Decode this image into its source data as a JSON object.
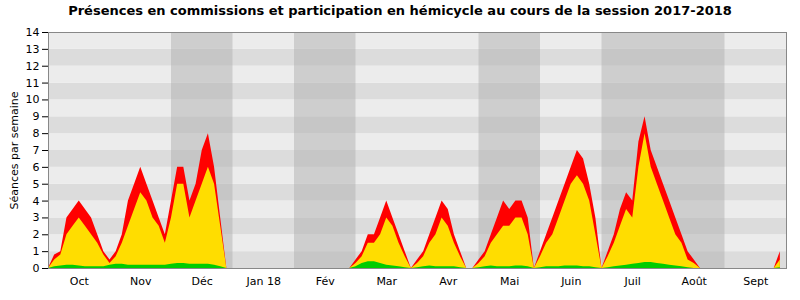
{
  "chart_data": {
    "type": "area",
    "title": "Présences en commissions et participation en hémicycle au cours de la session 2017-2018",
    "ylabel": "Séances par semaine",
    "x": [
      0,
      1,
      2,
      3,
      4,
      5,
      6,
      7,
      8,
      9,
      10,
      11,
      12,
      13,
      14,
      15,
      16,
      17,
      18,
      19,
      20,
      21,
      22,
      23,
      24,
      25,
      26,
      27,
      28,
      29,
      30,
      31,
      32,
      33,
      34,
      35,
      36,
      37,
      38,
      39,
      40,
      41,
      42,
      43,
      44,
      45,
      46,
      47,
      48,
      49,
      50,
      51,
      52,
      53,
      54,
      55,
      56,
      57,
      58,
      59,
      60,
      61,
      62,
      63,
      64,
      65,
      66,
      67,
      68,
      69,
      70,
      71,
      72,
      73,
      74,
      75,
      76,
      77,
      78,
      79,
      80,
      81,
      82,
      83,
      84,
      85,
      86,
      87,
      88,
      89,
      90,
      91,
      92,
      93,
      94,
      95,
      96,
      97,
      98,
      99,
      100,
      101,
      102,
      103,
      104,
      105,
      106,
      107,
      108,
      109,
      110,
      111,
      112,
      113,
      114,
      115,
      116,
      117,
      118,
      119
    ],
    "xlim": [
      0,
      120
    ],
    "xticks": [
      {
        "value": 5,
        "label": "Oct"
      },
      {
        "value": 15,
        "label": "Nov"
      },
      {
        "value": 25,
        "label": "Déc"
      },
      {
        "value": 35,
        "label": "Jan 18"
      },
      {
        "value": 45,
        "label": "Fév"
      },
      {
        "value": 55,
        "label": "Mar"
      },
      {
        "value": 65,
        "label": "Avr"
      },
      {
        "value": 75,
        "label": "Mai"
      },
      {
        "value": 85,
        "label": "Juin"
      },
      {
        "value": 95,
        "label": "Juil"
      },
      {
        "value": 105,
        "label": "Août"
      },
      {
        "value": 115,
        "label": "Sept"
      }
    ],
    "ylim": [
      0,
      14
    ],
    "yticks": [
      0,
      1,
      2,
      3,
      4,
      5,
      6,
      7,
      8,
      9,
      10,
      11,
      12,
      13,
      14
    ],
    "grid": true,
    "shaded_x_ranges": [
      [
        20,
        30
      ],
      [
        40,
        50
      ],
      [
        70,
        80
      ],
      [
        90,
        100
      ],
      [
        100,
        110
      ]
    ],
    "series": [
      {
        "color": "#ff0000",
        "values": [
          0,
          0.8,
          1,
          3,
          3.5,
          4,
          3.5,
          3,
          2,
          1,
          0.5,
          1,
          2,
          4,
          5,
          6,
          5,
          4,
          3,
          2,
          4,
          6,
          6,
          4,
          5,
          7,
          8,
          6,
          3,
          0,
          0,
          0,
          0,
          0,
          0,
          0,
          0,
          0,
          0,
          0,
          0,
          0,
          0,
          0,
          0,
          0,
          0,
          0,
          0,
          0,
          0.5,
          1,
          2,
          2,
          3,
          4,
          3,
          2,
          1,
          0,
          0.5,
          1,
          2,
          3,
          4,
          3.5,
          2,
          1,
          0,
          0,
          0.5,
          1,
          2,
          3,
          4,
          3.5,
          4,
          4,
          3,
          0,
          1,
          2,
          3,
          4,
          5,
          6,
          7,
          6.5,
          5,
          3,
          0,
          1,
          2,
          3.5,
          4.5,
          4,
          7.5,
          9,
          7,
          6,
          5,
          4,
          3,
          2,
          1,
          0.5,
          0,
          0,
          0,
          0,
          0,
          0,
          0,
          0,
          0,
          0,
          0,
          0,
          0,
          1
        ]
      },
      {
        "color": "#ffdd00",
        "values": [
          0,
          0.5,
          0.8,
          2,
          2.5,
          3,
          2.5,
          2,
          1.5,
          0.8,
          0.3,
          0.7,
          1.5,
          2.5,
          3.5,
          4.5,
          4,
          3,
          2.5,
          1.5,
          3,
          5,
          5,
          3,
          4,
          5,
          6,
          5,
          2.5,
          0,
          0,
          0,
          0,
          0,
          0,
          0,
          0,
          0,
          0,
          0,
          0,
          0,
          0,
          0,
          0,
          0,
          0,
          0,
          0,
          0,
          0.3,
          0.7,
          1.5,
          1.5,
          2,
          3,
          2.5,
          1.5,
          0.7,
          0,
          0.3,
          0.7,
          1.5,
          2,
          3,
          2.5,
          1.5,
          0.7,
          0,
          0,
          0.3,
          0.7,
          1.5,
          2,
          2.5,
          2.5,
          3,
          3,
          2,
          0,
          0.7,
          1.5,
          2,
          3,
          4,
          5,
          5.5,
          5,
          4,
          2,
          0,
          0.7,
          1.5,
          2.5,
          3.5,
          3,
          6,
          8,
          6,
          5,
          4,
          3,
          2,
          1.5,
          0.5,
          0.3,
          0,
          0,
          0,
          0,
          0,
          0,
          0,
          0,
          0,
          0,
          0,
          0,
          0,
          0.5
        ]
      },
      {
        "color": "#00cc00",
        "values": [
          0,
          0.1,
          0.15,
          0.2,
          0.2,
          0.15,
          0.1,
          0.1,
          0.1,
          0.1,
          0.2,
          0.25,
          0.25,
          0.2,
          0.2,
          0.2,
          0.2,
          0.2,
          0.2,
          0.2,
          0.25,
          0.3,
          0.3,
          0.25,
          0.25,
          0.25,
          0.25,
          0.2,
          0.1,
          0,
          0,
          0,
          0,
          0,
          0,
          0,
          0,
          0,
          0,
          0,
          0,
          0,
          0,
          0,
          0,
          0,
          0,
          0,
          0,
          0,
          0.1,
          0.3,
          0.4,
          0.4,
          0.3,
          0.2,
          0.15,
          0.1,
          0.05,
          0,
          0.05,
          0.1,
          0.15,
          0.1,
          0.1,
          0.1,
          0.1,
          0.05,
          0,
          0,
          0.05,
          0.1,
          0.15,
          0.1,
          0.1,
          0.1,
          0.15,
          0.15,
          0.1,
          0,
          0.05,
          0.1,
          0.1,
          0.1,
          0.15,
          0.15,
          0.15,
          0.1,
          0.1,
          0.05,
          0,
          0.05,
          0.1,
          0.15,
          0.2,
          0.25,
          0.3,
          0.35,
          0.35,
          0.3,
          0.25,
          0.2,
          0.15,
          0.1,
          0.05,
          0,
          0,
          0,
          0,
          0,
          0,
          0,
          0,
          0,
          0,
          0,
          0,
          0,
          0,
          0.05
        ]
      }
    ]
  }
}
